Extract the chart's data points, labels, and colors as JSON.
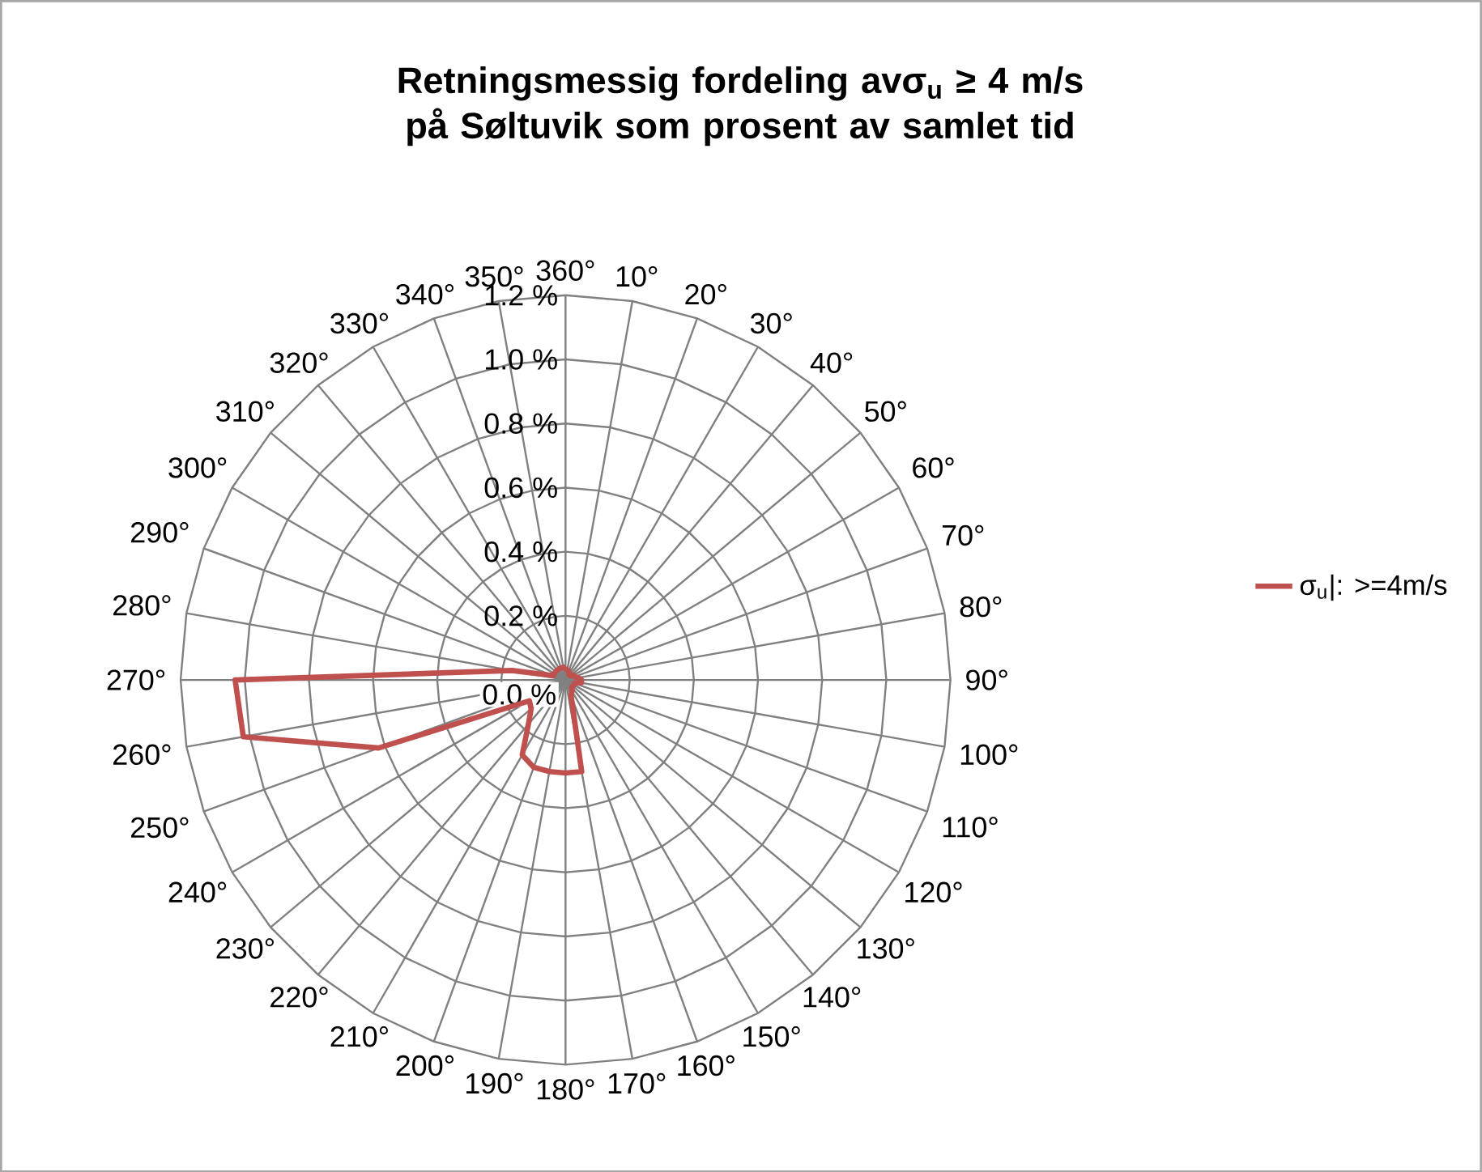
{
  "chart_data": {
    "type": "radar",
    "title": "Retningsmessig fordeling avσ$_{u}$ ≥ 4 m/s på Søltuvik som prosent av samlet tid",
    "categories": [
      "360°",
      "10°",
      "20°",
      "30°",
      "40°",
      "50°",
      "60°",
      "70°",
      "80°",
      "90°",
      "100°",
      "110°",
      "120°",
      "130°",
      "140°",
      "150°",
      "160°",
      "170°",
      "180°",
      "190°",
      "200°",
      "210°",
      "220°",
      "230°",
      "240°",
      "250°",
      "260°",
      "270°",
      "280°",
      "290°",
      "300°",
      "310°",
      "320°",
      "330°",
      "340°",
      "350°"
    ],
    "series": [
      {
        "name": "σ$_{u}$|: >=4m/s",
        "color": "#c0504d",
        "values": [
          0.04,
          0.03,
          0.03,
          0.02,
          0.02,
          0.02,
          0.03,
          0.03,
          0.04,
          0.05,
          0.05,
          0.03,
          0.03,
          0.03,
          0.03,
          0.04,
          0.05,
          0.29,
          0.29,
          0.29,
          0.29,
          0.27,
          0.18,
          0.14,
          0.13,
          0.62,
          1.02,
          1.03,
          0.17,
          0.04,
          0.04,
          0.04,
          0.04,
          0.04,
          0.04,
          0.04
        ]
      }
    ],
    "ylim": [
      0,
      1.2
    ],
    "yticks": [
      {
        "value": 0,
        "label": "0.0 %"
      },
      {
        "value": 0.2,
        "label": "0.2 %"
      },
      {
        "value": 0.4,
        "label": "0.4 %"
      },
      {
        "value": 0.6,
        "label": "0.6 %"
      },
      {
        "value": 0.8,
        "label": "0.8 %"
      },
      {
        "value": 1.0,
        "label": "1.0 %"
      },
      {
        "value": 1.2,
        "label": "1.2 %"
      }
    ],
    "grid": true,
    "legend": "right",
    "marker": "none",
    "line_style": "solid"
  }
}
